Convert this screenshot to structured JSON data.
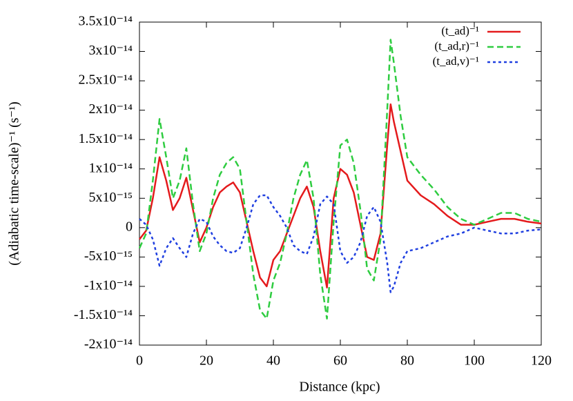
{
  "chart_data": {
    "type": "line",
    "xlabel": "Distance (kpc)",
    "ylabel": "(Adiabatic time-scale)⁻¹ (s⁻¹)",
    "x": [
      0,
      2,
      4,
      6,
      8,
      10,
      12,
      14,
      16,
      18,
      20,
      22,
      24,
      26,
      28,
      30,
      32,
      34,
      36,
      38,
      40,
      42,
      44,
      46,
      48,
      50,
      52,
      54,
      56,
      58,
      60,
      62,
      64,
      66,
      68,
      70,
      72,
      74,
      75,
      76,
      78,
      80,
      84,
      88,
      92,
      96,
      100,
      104,
      108,
      112,
      116,
      120
    ],
    "series": [
      {
        "name": "(t_ad)⁻¹",
        "color": "#e41a1c",
        "dash": "solid",
        "values": [
          -2e-15,
          -5e-16,
          5e-15,
          1.2e-14,
          8e-15,
          3e-15,
          5e-15,
          8.5e-15,
          3e-15,
          -2.5e-15,
          0,
          3.5e-15,
          6e-15,
          7e-15,
          7.7e-15,
          6e-15,
          1e-15,
          -4e-15,
          -8.5e-15,
          -1e-14,
          -5.5e-15,
          -4e-15,
          -1e-15,
          2e-15,
          5e-15,
          7e-15,
          3.5e-15,
          -4e-15,
          -1.02e-14,
          5e-15,
          1e-14,
          9e-15,
          6e-15,
          5e-16,
          -5e-15,
          -5.5e-15,
          -1e-15,
          1.4e-14,
          2.1e-14,
          1.8e-14,
          1.3e-14,
          8e-15,
          5.5e-15,
          4e-15,
          2e-15,
          5e-16,
          5e-16,
          1e-15,
          1.5e-15,
          1.5e-15,
          1e-15,
          7e-16
        ]
      },
      {
        "name": "(t_ad,r)⁻¹",
        "color": "#2ecc40",
        "dash": "dashed",
        "values": [
          -3.5e-15,
          -1e-15,
          8e-15,
          1.85e-14,
          1.2e-14,
          5e-15,
          8e-15,
          1.35e-14,
          4e-15,
          -4e-15,
          -1e-15,
          5e-15,
          9e-15,
          1.1e-14,
          1.2e-14,
          1e-14,
          1e-15,
          -8e-15,
          -1.4e-14,
          -1.55e-14,
          -9e-15,
          -6e-15,
          -1e-15,
          5e-15,
          9e-15,
          1.15e-14,
          5e-15,
          -8e-15,
          -1.55e-14,
          1e-15,
          1.4e-14,
          1.5e-14,
          1.1e-14,
          3e-15,
          -7e-15,
          -9e-15,
          -2e-15,
          2e-14,
          3.2e-14,
          2.8e-14,
          1.9e-14,
          1.2e-14,
          9e-15,
          6.5e-15,
          3.5e-15,
          1.5e-15,
          5e-16,
          1.5e-15,
          2.5e-15,
          2.5e-15,
          1.5e-15,
          1e-15
        ]
      },
      {
        "name": "(t_ad,v)⁻¹",
        "color": "#1f3fe0",
        "dash": "dotted",
        "values": [
          1.5e-15,
          5e-16,
          -2e-15,
          -6.5e-15,
          -3.5e-15,
          -1.8e-15,
          -3.5e-15,
          -5e-15,
          -1e-15,
          1.5e-15,
          1e-15,
          -1.5e-15,
          -3e-15,
          -4e-15,
          -4.3e-15,
          -3.5e-15,
          0,
          4e-15,
          5.5e-15,
          5.5e-15,
          3.5e-15,
          2e-15,
          0,
          -3e-15,
          -4e-15,
          -4.5e-15,
          -1.5e-15,
          4e-15,
          5.3e-15,
          4e-15,
          -4e-15,
          -6e-15,
          -5e-15,
          -2.5e-15,
          2e-15,
          3.5e-15,
          1e-15,
          -6e-15,
          -1.1e-14,
          -1e-14,
          -6e-15,
          -4e-15,
          -3.5e-15,
          -2.5e-15,
          -1.5e-15,
          -1e-15,
          0,
          -5e-16,
          -1e-15,
          -1e-15,
          -5e-16,
          -3e-16
        ]
      }
    ],
    "xlim": [
      0,
      120
    ],
    "xticks": [
      0,
      20,
      40,
      60,
      80,
      100,
      120
    ],
    "ylim": [
      -2e-14,
      3.5e-14
    ],
    "yticks": [
      {
        "value": -2e-14,
        "label": "-2x10⁻¹⁴"
      },
      {
        "value": -1.5e-14,
        "label": "-1.5x10⁻¹⁴"
      },
      {
        "value": -1e-14,
        "label": "-1x10⁻¹⁴"
      },
      {
        "value": -5e-15,
        "label": "-5x10⁻¹⁵"
      },
      0,
      {
        "value": 5e-15,
        "label": "5x10⁻¹⁵"
      },
      {
        "value": 1e-14,
        "label": "1x10⁻¹⁴"
      },
      {
        "value": 1.5e-14,
        "label": "1.5x10⁻¹⁴"
      },
      {
        "value": 2e-14,
        "label": "2x10⁻¹⁴"
      },
      {
        "value": 2.5e-14,
        "label": "2.5x10⁻¹⁴"
      },
      {
        "value": 3e-14,
        "label": "3x10⁻¹⁴"
      },
      {
        "value": 3.5e-14,
        "label": "3.5x10⁻¹⁴"
      }
    ],
    "legend": "upper right"
  }
}
